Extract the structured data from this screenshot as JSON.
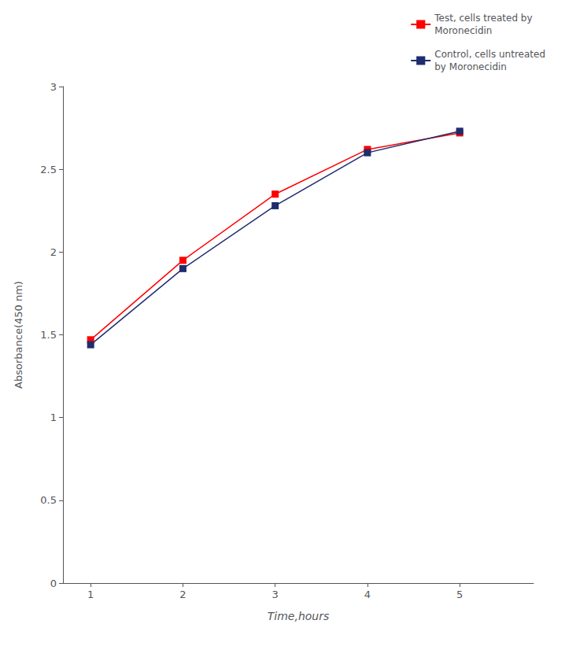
{
  "chart_data": {
    "type": "line",
    "x": [
      1,
      2,
      3,
      4,
      5
    ],
    "series": [
      {
        "name": "Test, cells treated by\nMoronecidin",
        "color": "#FF0000",
        "values": [
          1.47,
          1.95,
          2.35,
          2.62,
          2.72
        ]
      },
      {
        "name": "Control, cells untreated\nby Moronecidin",
        "color": "#1F2D6E",
        "values": [
          1.44,
          1.9,
          2.28,
          2.6,
          2.73
        ]
      }
    ],
    "xlabel": "Time,hours",
    "ylabel": "Absorbance(450 nm)",
    "xlim": [
      0.7,
      5.8
    ],
    "xticks": [
      1,
      2,
      3,
      4,
      5
    ],
    "ylim": [
      0,
      3.0
    ],
    "yticks": [
      0,
      0.5,
      1,
      1.5,
      2,
      2.5,
      3
    ],
    "grid": false,
    "legend": "upper right",
    "marker": "square"
  }
}
